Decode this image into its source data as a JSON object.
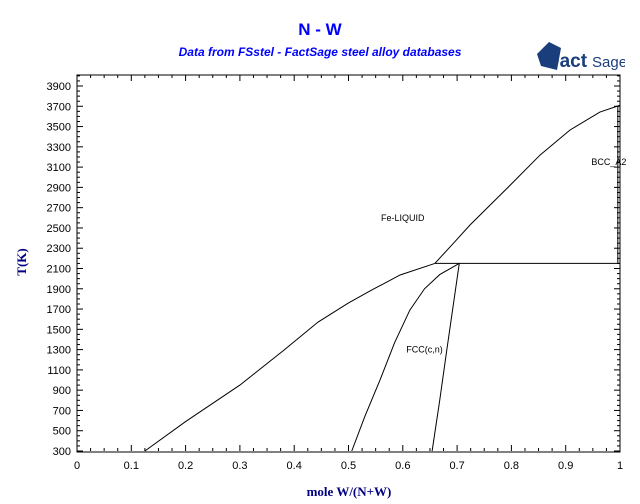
{
  "chart_data": {
    "type": "line",
    "title": "N - W",
    "subtitle": "Data from FSstel - FactSage steel alloy databases",
    "logo": "FactSage",
    "xlabel": "mole W/(N+W)",
    "ylabel": "T(K)",
    "xlim": [
      0,
      1
    ],
    "ylim": [
      300,
      4000
    ],
    "xticks": [
      "0",
      "0.1",
      "0.2",
      "0.3",
      "0.4",
      "0.5",
      "0.6",
      "0.7",
      "0.8",
      "0.9",
      "1"
    ],
    "yticks": [
      "300",
      "500",
      "700",
      "900",
      "1100",
      "1300",
      "1500",
      "1700",
      "1900",
      "2100",
      "2300",
      "2500",
      "2700",
      "2900",
      "3100",
      "3300",
      "3500",
      "3700",
      "3900"
    ],
    "grid": false,
    "line_color": "#000000",
    "title_color": "#0000ff",
    "axis_label_color": "#000080",
    "series": [
      {
        "points": [
          [
            0.125,
            300
          ],
          [
            0.2,
            590
          ],
          [
            0.3,
            950
          ],
          [
            0.38,
            1290
          ],
          [
            0.444,
            1572
          ],
          [
            0.5,
            1760
          ],
          [
            0.543,
            1888
          ],
          [
            0.595,
            2036
          ],
          [
            0.659,
            2150
          ]
        ]
      },
      {
        "points": [
          [
            0.659,
            2150
          ],
          [
            0.69,
            2330
          ],
          [
            0.724,
            2530
          ],
          [
            0.79,
            2880
          ],
          [
            0.853,
            3220
          ],
          [
            0.908,
            3466
          ],
          [
            0.963,
            3643
          ],
          [
            1.0,
            3710
          ]
        ]
      },
      {
        "points": [
          [
            0.659,
            2150
          ],
          [
            1.0,
            2150
          ]
        ]
      },
      {
        "points": [
          [
            0.506,
            300
          ],
          [
            0.53,
            640
          ],
          [
            0.558,
            1000
          ],
          [
            0.585,
            1370
          ],
          [
            0.613,
            1690
          ],
          [
            0.64,
            1900
          ],
          [
            0.668,
            2040
          ],
          [
            0.704,
            2150
          ]
        ]
      },
      {
        "points": [
          [
            0.654,
            300
          ],
          [
            0.668,
            800
          ],
          [
            0.681,
            1296
          ],
          [
            0.704,
            2150
          ]
        ]
      },
      {
        "points": [
          [
            0.996,
            2150
          ],
          [
            0.996,
            3700
          ]
        ]
      }
    ],
    "annotations": [
      {
        "text": "Fe-LIQUID",
        "x": 0.6,
        "T": 2600
      },
      {
        "text": "FCC(c,n)",
        "x": 0.64,
        "T": 1300
      },
      {
        "text": "BCC_A2",
        "x": 0.998,
        "T": 3150
      }
    ]
  }
}
